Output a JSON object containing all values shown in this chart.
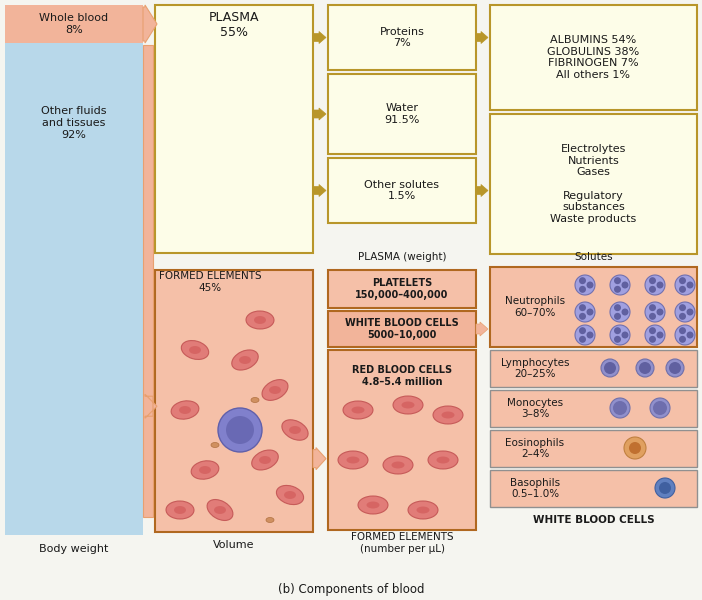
{
  "title": "(b) Components of blood",
  "bg_color": "#f5f5f0",
  "light_blue": "#b8d8ea",
  "salmon": "#f2b49a",
  "light_yellow": "#fdfde8",
  "yellow_border": "#b8962a",
  "orange_arrow": "#e8a070",
  "pink_box": "#f5c0a8",
  "dark_orange_border": "#b06820",
  "gray_border": "#909090",
  "col1_label": "Body weight",
  "col2_label": "Volume",
  "col3_label": "PLASMA (weight)",
  "col4_label": "Solutes",
  "col3b_label": "FORMED ELEMENTS\n(number per μL)",
  "col4b_label": "WHITE BLOOD CELLS",
  "whole_blood_text": "Whole blood\n8%",
  "other_fluids_text": "Other fluids\nand tissues\n92%",
  "plasma_text": "PLASMA\n55%",
  "formed_elements_text": "FORMED ELEMENTS\n45%",
  "proteins_text": "Proteins\n7%",
  "water_text": "Water\n91.5%",
  "other_solutes_text": "Other solutes\n1.5%",
  "albumins_text": "ALBUMINS 54%\nGLOBULINS 38%\nFIBRINOGEN 7%\nAll others 1%",
  "solutes_text": "Electrolytes\nNutrients\nGases\n\nRegulatory\nsubstances\nWaste products",
  "platelets_text": "PLATELETS\n150,000–400,000",
  "wbc_text": "WHITE BLOOD CELLS\n5000–10,000",
  "rbc_text": "RED BLOOD CELLS\n4.8–5.4 million",
  "neutrophils_text": "Neutrophils\n60–70%",
  "lymphocytes_text": "Lymphocytes\n20–25%",
  "monocytes_text": "Monocytes\n3–8%",
  "eosinophils_text": "Eosinophils\n2–4%",
  "basophils_text": "Basophils\n0.5–1.0%"
}
